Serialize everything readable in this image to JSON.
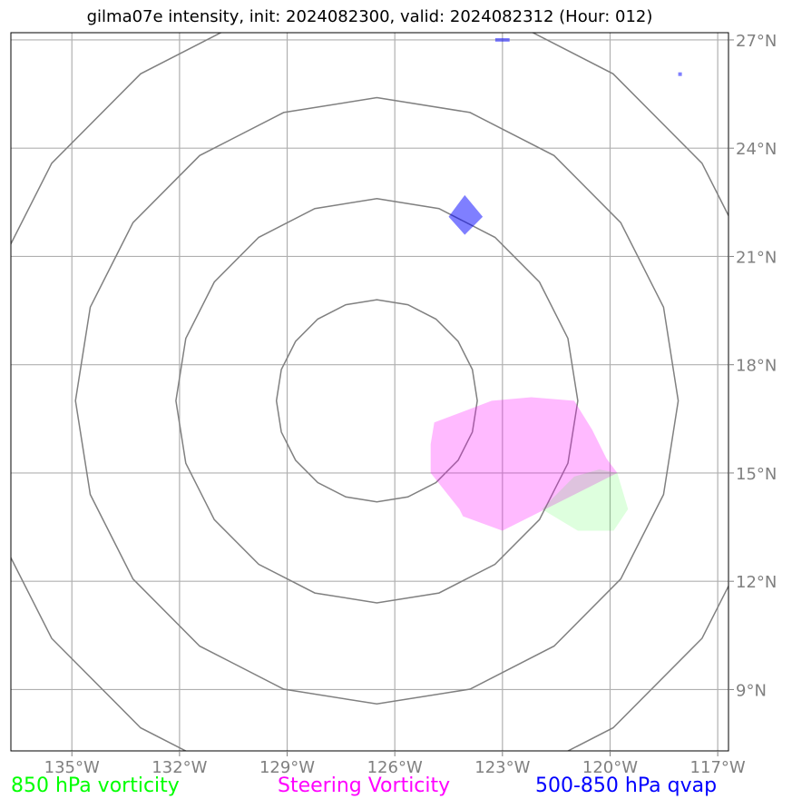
{
  "title": "gilma07e intensity, init: 2024082300, valid: 2024082312 (Hour: 012)",
  "map": {
    "projection": "lon-lat",
    "lon_range": [
      -136.7,
      -116.7
    ],
    "lat_range": [
      7.3,
      27.2
    ],
    "lon_ticks": [
      -135,
      -132,
      -129,
      -126,
      -123,
      -120,
      -117
    ],
    "lat_ticks": [
      9,
      12,
      15,
      18,
      21,
      24,
      27
    ],
    "lon_tick_labels": [
      "135°W",
      "132°W",
      "129°W",
      "126°W",
      "123°W",
      "120°W",
      "117°W"
    ],
    "lat_tick_labels": [
      "9°N",
      "12°N",
      "15°N",
      "18°N",
      "21°N",
      "24°N",
      "27°N"
    ],
    "gridlines": true,
    "grid_color": "#b0b0b0",
    "range_rings": {
      "center": [
        -126.5,
        17.0
      ],
      "radii_deg": [
        2.8,
        5.6,
        8.4,
        11.2
      ],
      "color": "#808080"
    },
    "features": [
      {
        "name": "steering-vorticity-region",
        "layer": "Steering Vorticity",
        "color": "#ff00ff",
        "opacity": 0.27,
        "polygon": [
          [
            -124.9,
            16.4
          ],
          [
            -123.3,
            17.0
          ],
          [
            -122.2,
            17.1
          ],
          [
            -121.0,
            17.0
          ],
          [
            -120.5,
            16.2
          ],
          [
            -120.1,
            15.4
          ],
          [
            -119.8,
            15.0
          ],
          [
            -121.2,
            14.3
          ],
          [
            -122.2,
            13.8
          ],
          [
            -123.0,
            13.4
          ],
          [
            -124.1,
            13.8
          ],
          [
            -124.2,
            14.0
          ],
          [
            -125.0,
            15.0
          ],
          [
            -125.0,
            15.8
          ]
        ]
      },
      {
        "name": "vorticity-850-region",
        "layer": "850 hPa vorticity",
        "color": "#00ff00",
        "opacity": 0.13,
        "polygon": [
          [
            -121.0,
            14.9
          ],
          [
            -120.3,
            15.1
          ],
          [
            -119.8,
            15.0
          ],
          [
            -119.5,
            14.0
          ],
          [
            -119.9,
            13.4
          ],
          [
            -120.9,
            13.4
          ],
          [
            -121.9,
            14.0
          ]
        ]
      },
      {
        "name": "qvap-region-main",
        "layer": "500-850 hPa qvap",
        "color": "#0000ff",
        "opacity": 0.5,
        "polygon": [
          [
            -124.05,
            22.7
          ],
          [
            -123.55,
            22.1
          ],
          [
            -124.05,
            21.6
          ],
          [
            -124.5,
            22.1
          ]
        ]
      },
      {
        "name": "qvap-region-top",
        "layer": "500-850 hPa qvap",
        "color": "#0000ff",
        "opacity": 0.5,
        "polygon": [
          [
            -123.2,
            27.05
          ],
          [
            -122.8,
            27.05
          ],
          [
            -122.8,
            26.95
          ],
          [
            -123.2,
            26.95
          ]
        ]
      },
      {
        "name": "qvap-region-east",
        "layer": "500-850 hPa qvap",
        "color": "#0000ff",
        "opacity": 0.5,
        "polygon": [
          [
            -118.1,
            26.1
          ],
          [
            -118.0,
            26.1
          ],
          [
            -118.0,
            26.0
          ],
          [
            -118.1,
            26.0
          ]
        ]
      }
    ]
  },
  "legend": [
    {
      "label": "850 hPa vorticity",
      "color": "#00ff00"
    },
    {
      "label": "Steering Vorticity",
      "color": "#ff00ff"
    },
    {
      "label": "500-850 hPa qvap",
      "color": "#0000ff"
    }
  ]
}
